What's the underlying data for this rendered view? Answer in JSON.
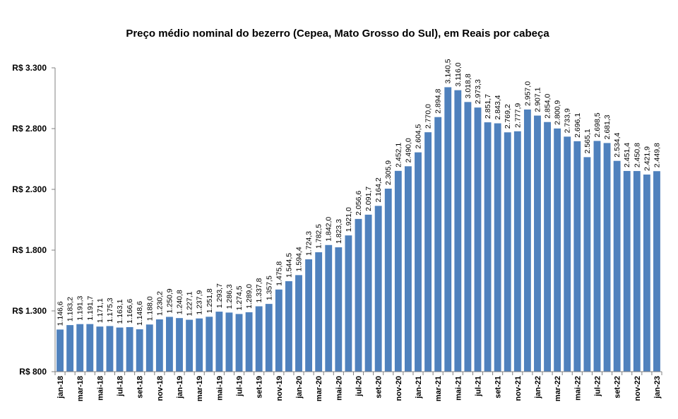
{
  "chart_data": {
    "type": "bar",
    "title": "Preço médio nominal do bezerro (Cepea, Mato Grosso do Sul), em Reais por cabeça",
    "xlabel": "",
    "ylabel": "",
    "ylim": [
      800,
      3300
    ],
    "yticks": [
      800,
      1300,
      1800,
      2300,
      2800,
      3300
    ],
    "ytick_labels": [
      "R$ 800",
      "R$ 1.300",
      "R$ 1.800",
      "R$ 2.300",
      "R$ 2.800",
      "R$ 3.300"
    ],
    "grid": false,
    "legend": "none",
    "bar_color": "#4F81BD",
    "categories": [
      "jan-18",
      "fev-18",
      "mar-18",
      "abr-18",
      "mai-18",
      "jun-18",
      "jul-18",
      "ago-18",
      "set-18",
      "out-18",
      "nov-18",
      "dez-18",
      "jan-19",
      "fev-19",
      "mar-19",
      "abr-19",
      "mai-19",
      "jun-19",
      "jul-19",
      "ago-19",
      "set-19",
      "out-19",
      "nov-19",
      "dez-19",
      "jan-20",
      "fev-20",
      "mar-20",
      "abr-20",
      "mai-20",
      "jun-20",
      "jul-20",
      "ago-20",
      "set-20",
      "out-20",
      "nov-20",
      "dez-20",
      "jan-21",
      "fev-21",
      "mar-21",
      "abr-21",
      "mai-21",
      "jun-21",
      "jul-21",
      "ago-21",
      "set-21",
      "out-21",
      "nov-21",
      "dez-21",
      "jan-22",
      "fev-22",
      "mar-22",
      "abr-22",
      "mai-22",
      "jun-22",
      "jul-22",
      "ago-22",
      "set-22",
      "out-22",
      "nov-22",
      "dez-22",
      "jan-23"
    ],
    "tick_labels": [
      "jan-18",
      "",
      "mar-18",
      "",
      "mai-18",
      "",
      "jul-18",
      "",
      "set-18",
      "",
      "nov-18",
      "",
      "jan-19",
      "",
      "mar-19",
      "",
      "mai-19",
      "",
      "jul-19",
      "",
      "set-19",
      "",
      "nov-19",
      "",
      "jan-20",
      "",
      "mar-20",
      "",
      "mai-20",
      "",
      "jul-20",
      "",
      "set-20",
      "",
      "nov-20",
      "",
      "jan-21",
      "",
      "mar-21",
      "",
      "mai-21",
      "",
      "jul-21",
      "",
      "set-21",
      "",
      "nov-21",
      "",
      "jan-22",
      "",
      "mar-22",
      "",
      "mai-22",
      "",
      "jul-22",
      "",
      "set-22",
      "",
      "nov-22",
      "",
      "jan-23"
    ],
    "values": [
      1146.6,
      1183.2,
      1191.3,
      1191.7,
      1171.1,
      1175.3,
      1163.1,
      1166.6,
      1148.6,
      1188.0,
      1230.2,
      1250.9,
      1240.8,
      1227.1,
      1237.9,
      1251.8,
      1293.7,
      1286.3,
      1274.5,
      1289.0,
      1337.8,
      1357.5,
      1475.8,
      1544.5,
      1594.4,
      1724.3,
      1782.5,
      1842.0,
      1823.3,
      1921.0,
      2056.6,
      2091.7,
      2164.2,
      2305.9,
      2452.1,
      2490.0,
      2604.5,
      2770.0,
      2894.8,
      3140.5,
      3116.0,
      3018.8,
      2973.3,
      2851.7,
      2843.4,
      2769.2,
      2777.9,
      2957.0,
      2907.1,
      2854.0,
      2800.9,
      2733.9,
      2696.1,
      2565.1,
      2698.5,
      2681.3,
      2534.4,
      2451.4,
      2450.8,
      2421.9,
      2449.8
    ],
    "data_labels": [
      "1.146,6",
      "1.183,2",
      "1.191,3",
      "1.191,7",
      "1.171,1",
      "1.175,3",
      "1.163,1",
      "1.166,6",
      "1.148,6",
      "1.188,0",
      "1.230,2",
      "1.250,9",
      "1.240,8",
      "1.227,1",
      "1.237,9",
      "1.251,8",
      "1.293,7",
      "1.286,3",
      "1.274,5",
      "1.289,0",
      "1.337,8",
      "1.357,5",
      "1.475,8",
      "1.544,5",
      "1.594,4",
      "1.724,3",
      "1.782,5",
      "1.842,0",
      "1.823,3",
      "1.921,0",
      "2.056,6",
      "2.091,7",
      "2.164,2",
      "2.305,9",
      "2.452,1",
      "2.490,0",
      "2.604,5",
      "2.770,0",
      "2.894,8",
      "3.140,5",
      "3.116,0",
      "3.018,8",
      "2.973,3",
      "2.851,7",
      "2.843,4",
      "2.769,2",
      "2.777,9",
      "2.957,0",
      "2.907,1",
      "2.854,0",
      "2.800,9",
      "2.733,9",
      "2.696,1",
      "2.565,1",
      "2.698,5",
      "2.681,3",
      "2.534,4",
      "2.451,4",
      "2.450,8",
      "2.421,9",
      "2.449,8"
    ]
  }
}
